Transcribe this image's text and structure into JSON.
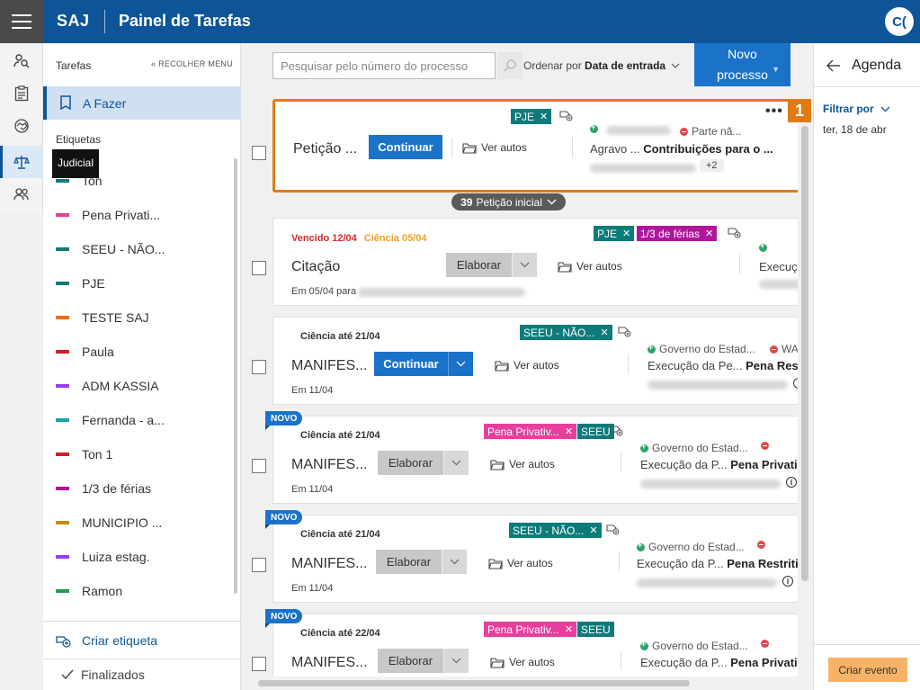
{
  "header": {
    "brand": "SAJ",
    "title": "Painel de Tarefas",
    "avatar_initials": "C("
  },
  "rail": {
    "tooltip": "Judicial",
    "icons": [
      "person-search-icon",
      "clipboard-icon",
      "handshake-icon",
      "scales-icon",
      "group-icon"
    ]
  },
  "left_panel": {
    "header": "Tarefas",
    "collapse_label": "« RECOLHER MENU",
    "active_item": "A Fazer",
    "labels_header": "Etiquetas",
    "labels": [
      {
        "name": "Ton",
        "color": "#0e7b7b"
      },
      {
        "name": "Pena Privati...",
        "color": "#e83e9c"
      },
      {
        "name": "SEEU - NÃO...",
        "color": "#0e7b7b"
      },
      {
        "name": "PJE",
        "color": "#0e7b7b"
      },
      {
        "name": "TESTE SAJ",
        "color": "#f06a1a"
      },
      {
        "name": "Paula",
        "color": "#c8202c"
      },
      {
        "name": "ADM KASSIA",
        "color": "#9b3ee8"
      },
      {
        "name": "Fernanda - a...",
        "color": "#1aa3a3"
      },
      {
        "name": "Ton 1",
        "color": "#c8202c"
      },
      {
        "name": "1/3 de férias",
        "color": "#b0169b"
      },
      {
        "name": "MUNICIPIO ...",
        "color": "#c88a12"
      },
      {
        "name": "Luiza estag.",
        "color": "#9b3ee8"
      },
      {
        "name": "Ramon",
        "color": "#1e9e4e"
      }
    ],
    "create_label": "Criar etiqueta",
    "finished": "Finalizados"
  },
  "toolbar": {
    "search_placeholder": "Pesquisar pelo número do processo",
    "order_prefix": "Ordenar por",
    "order_value": "Data de entrada",
    "new_process_line1": "Novo",
    "new_process_line2": "processo"
  },
  "cards": [
    {
      "title": "Petição ...",
      "action": "Continuar",
      "ver_autos": "Ver autos",
      "tags": [
        {
          "name": "PJE",
          "color": "#0e7b7b"
        }
      ],
      "party_right": "Parte nã...",
      "subject": "Agravo ...",
      "subject_bold": "Contribuições para o ...",
      "more": "+2",
      "marker": "1"
    },
    {
      "due": "Vencido 12/04",
      "ciencia": "Ciência 05/04",
      "title": "Citação",
      "action": "Elaborar",
      "ver_autos": "Ver autos",
      "date": "Em 05/04 para",
      "tags": [
        {
          "name": "PJE",
          "color": "#0e7b7b"
        },
        {
          "name": "1/3 de férias",
          "color": "#b0169b"
        }
      ],
      "subject": "Execuçã"
    },
    {
      "heading": "Ciência até 21/04",
      "title": "MANIFES...",
      "action": "Continuar",
      "ver_autos": "Ver autos",
      "date": "Em 11/04",
      "tags": [
        {
          "name": "SEEU - NÃO...",
          "color": "#0e7b7b"
        }
      ],
      "party_left": "Governo do Estad...",
      "party_right": "WA",
      "subject": "Execução da Pe...",
      "subject_bold": "Pena Restrit"
    },
    {
      "badge": "NOVO",
      "heading": "Ciência até 21/04",
      "title": "MANIFES...",
      "action": "Elaborar",
      "ver_autos": "Ver autos",
      "date": "Em 11/04",
      "tags": [
        {
          "name": "Pena Privativ...",
          "color": "#e83e9c"
        },
        {
          "name": "SEEU",
          "color": "#0e7b7b"
        }
      ],
      "party_left": "Governo do Estad...",
      "subject": "Execução da P...",
      "subject_bold": "Pena Privativ"
    },
    {
      "badge": "NOVO",
      "heading": "Ciência até 21/04",
      "title": "MANIFES...",
      "action": "Elaborar",
      "ver_autos": "Ver autos",
      "date": "Em 11/04",
      "tags": [
        {
          "name": "SEEU - NÃO...",
          "color": "#0e7b7b"
        }
      ],
      "party_left": "Governo do Estad...",
      "subject": "Execução da P...",
      "subject_bold": "Pena Restritiv"
    },
    {
      "badge": "NOVO",
      "heading": "Ciência até 22/04",
      "title": "MANIFES...",
      "action": "Elaborar",
      "ver_autos": "Ver autos",
      "tags": [
        {
          "name": "Pena Privativ...",
          "color": "#e83e9c"
        },
        {
          "name": "SEEU",
          "color": "#0e7b7b"
        }
      ],
      "party_left": "Governo do Estad...",
      "subject": "Execução da P...",
      "subject_bold": "Pena Privativ"
    }
  ],
  "group_badge": {
    "count": "39",
    "label": "Petição inicial"
  },
  "agenda": {
    "title": "Agenda",
    "filter": "Filtrar por",
    "date": "ter, 18 de abr",
    "create_event": "Criar evento"
  }
}
